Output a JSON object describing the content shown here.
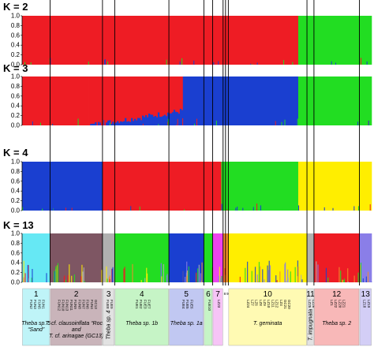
{
  "colors": {
    "red": "#ee1c24",
    "green": "#22dd22",
    "blue": "#1a3fd0",
    "cyan": "#66e8f4",
    "mauve": "#7e5663",
    "grey": "#b0b0b0",
    "yellow": "#ffee00",
    "magenta": "#ee44ee",
    "violet": "#8a7ee8",
    "orange": "#f28c2a"
  },
  "chart_data": {
    "type": "bar",
    "description_note": "Stacked ancestry (membership coefficient) bar plots for four K values; each sample is a vertical bar summing to 1.0",
    "ylim": [
      0,
      1.0
    ],
    "yticks": [
      "0.0",
      "0.2",
      "0.4",
      "0.6",
      "0.8",
      "1.0"
    ],
    "panels": [
      {
        "label": "K = 2",
        "segments": [
          {
            "from": 0,
            "to": 0.79,
            "color": "red"
          },
          {
            "from": 0.79,
            "to": 1.0,
            "color": "green"
          }
        ]
      },
      {
        "label": "K = 3",
        "segments": [
          {
            "from": 0,
            "to": 0.19,
            "color": "red"
          },
          {
            "from": 0.19,
            "to": 0.46,
            "color": "red",
            "bottom_color": "blue",
            "bottom_from": 0.0,
            "bottom_to": 0.3
          },
          {
            "from": 0.46,
            "to": 0.79,
            "color": "blue"
          },
          {
            "from": 0.79,
            "to": 1.0,
            "color": "green"
          }
        ]
      },
      {
        "label": "K = 4",
        "segments": [
          {
            "from": 0,
            "to": 0.23,
            "color": "blue"
          },
          {
            "from": 0.23,
            "to": 0.57,
            "color": "red"
          },
          {
            "from": 0.57,
            "to": 0.79,
            "color": "green"
          },
          {
            "from": 0.79,
            "to": 1.0,
            "color": "yellow"
          }
        ]
      },
      {
        "label": "K = 13",
        "segments": [
          {
            "from": 0,
            "to": 0.08,
            "color": "cyan"
          },
          {
            "from": 0.08,
            "to": 0.23,
            "color": "mauve"
          },
          {
            "from": 0.23,
            "to": 0.265,
            "color": "grey"
          },
          {
            "from": 0.265,
            "to": 0.42,
            "color": "green"
          },
          {
            "from": 0.42,
            "to": 0.52,
            "color": "blue"
          },
          {
            "from": 0.52,
            "to": 0.545,
            "color": "green"
          },
          {
            "from": 0.545,
            "to": 0.575,
            "color": "magenta"
          },
          {
            "from": 0.575,
            "to": 0.59,
            "color": "orange"
          },
          {
            "from": 0.59,
            "to": 0.815,
            "color": "yellow"
          },
          {
            "from": 0.815,
            "to": 0.835,
            "color": "grey"
          },
          {
            "from": 0.835,
            "to": 0.965,
            "color": "red"
          },
          {
            "from": 0.965,
            "to": 1.0,
            "color": "violet"
          }
        ]
      }
    ],
    "groups": [
      {
        "num": "1",
        "names": [
          "Theba sp. 5",
          "“Sand”"
        ],
        "from": 0.0,
        "to": 0.08,
        "bg": "#bff4f8",
        "samples": [
          "FUN2",
          "FUN3",
          "FUN5",
          "FUN1"
        ]
      },
      {
        "num": "2",
        "names": [
          "T. cf. clausoinflata “Rock”",
          "and",
          "T. cf. arinagae (GC13)"
        ],
        "from": 0.08,
        "to": 0.23,
        "bg": "#c9b4ba",
        "samples": [
          "FUN12",
          "FUN10",
          "FUN13",
          "FUN11",
          "FUN9",
          "FUN8",
          "FUN7",
          "FUN6",
          "FUN4",
          "GC13"
        ]
      },
      {
        "num": "3",
        "names": [
          "Theba sp. 4"
        ],
        "from": 0.23,
        "to": 0.265,
        "bg": "#e2e2e2",
        "samples": [
          "FUE8",
          "FUE9"
        ]
      },
      {
        "num": "4",
        "names": [
          "Theba sp. 1b"
        ],
        "from": 0.265,
        "to": 0.42,
        "bg": "#c6f4c6",
        "samples": [
          "FUE1",
          "FUE2",
          "FUE3",
          "FUE7"
        ]
      },
      {
        "num": "5",
        "names": [
          "Theba sp. 1a"
        ],
        "from": 0.42,
        "to": 0.52,
        "bg": "#c1c8f2",
        "samples": [
          "FUE4",
          "FUE5",
          "FUE6"
        ]
      },
      {
        "num": "6",
        "names": [],
        "from": 0.52,
        "to": 0.545,
        "bg": "#c6f4c6",
        "samples": [
          "FUE10"
        ]
      },
      {
        "num": "7",
        "names": [],
        "from": 0.545,
        "to": 0.575,
        "bg": "#f6c4f6",
        "samples": [
          "LZ23"
        ]
      },
      {
        "num": "10",
        "names": [
          "T. geminata"
        ],
        "from": 0.59,
        "to": 0.815,
        "bg": "#fffab3",
        "samples": [
          "LZ24",
          "LZ7",
          "LZ6",
          "LZ8",
          "LZ9",
          "LZ10",
          "LZ11",
          "LZ12",
          "LZ4",
          "GC21",
          "GC20"
        ]
      },
      {
        "num": "11",
        "names": [
          "T. impugnata"
        ],
        "from": 0.815,
        "to": 0.835,
        "bg": "#e2e2e2",
        "samples": [
          "LZ25",
          "LZ26"
        ]
      },
      {
        "num": "12",
        "names": [
          "Theba sp. 2"
        ],
        "from": 0.835,
        "to": 0.965,
        "bg": "#f8b8b8",
        "samples": [
          "LZ1",
          "LZ22",
          "LZ20",
          "LZ21"
        ]
      },
      {
        "num": "13",
        "names": [],
        "from": 0.965,
        "to": 1.0,
        "bg": "#d3cef6",
        "samples": [
          "LZ18",
          "LZ19"
        ]
      }
    ],
    "small_groups": [
      "8",
      "9"
    ],
    "boundaries": [
      0.08,
      0.23,
      0.265,
      0.42,
      0.52,
      0.545,
      0.575,
      0.582,
      0.59,
      0.815,
      0.835,
      0.965
    ]
  }
}
